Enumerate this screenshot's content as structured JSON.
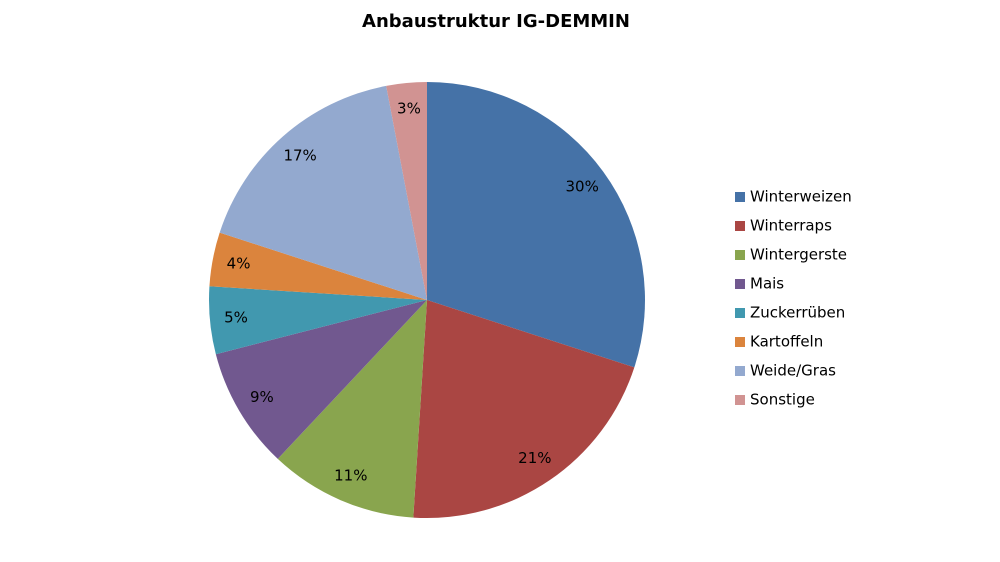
{
  "chart_data": {
    "type": "pie",
    "title": "Anbaustruktur IG-DEMMIN",
    "categories": [
      "Winterweizen",
      "Winterraps",
      "Wintergerste",
      "Mais",
      "Zuckerrüben",
      "Kartoffeln",
      "Weide/Gras",
      "Sonstige"
    ],
    "values": [
      30,
      21,
      11,
      9,
      5,
      4,
      17,
      3
    ],
    "value_labels": [
      "30%",
      "21%",
      "11%",
      "9%",
      "5%",
      "4%",
      "17%",
      "3%"
    ],
    "colors": [
      "#4572A7",
      "#AA4643",
      "#89A54E",
      "#71588F",
      "#4198AF",
      "#DB843D",
      "#93A9CF",
      "#D19392"
    ],
    "legend": "right"
  }
}
